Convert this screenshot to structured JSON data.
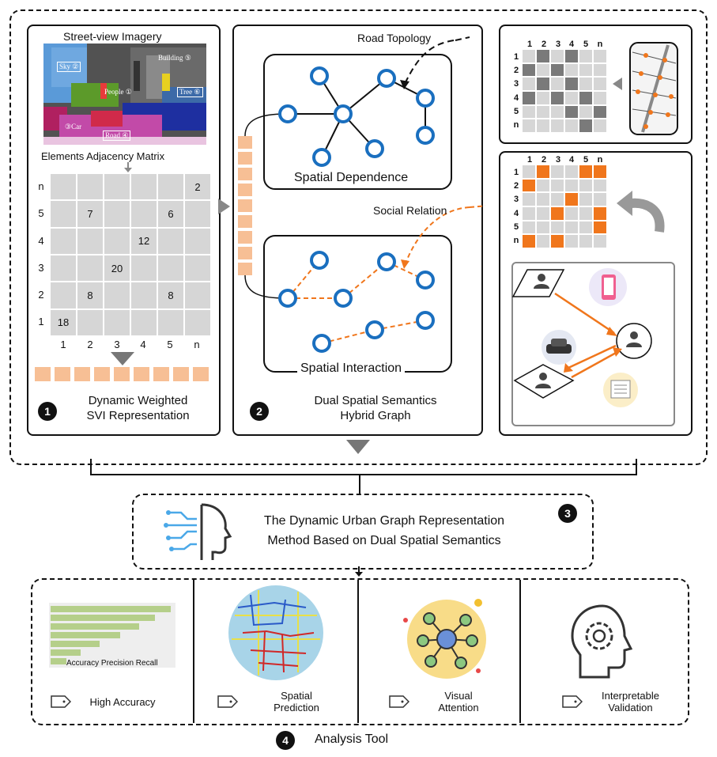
{
  "panel1": {
    "title": "Street-view Imagery",
    "segment_labels": [
      "Sky ②",
      "Building ⑤",
      "People ①",
      "Tree ⑥",
      "③Car",
      "Road ④"
    ],
    "matrix_title": "Elements Adjacency Matrix",
    "row_labels": [
      "n",
      "5",
      "4",
      "3",
      "2",
      "1"
    ],
    "col_labels": [
      "1",
      "2",
      "3",
      "4",
      "5",
      "n"
    ],
    "cell_values": [
      "2",
      "7",
      "6",
      "12",
      "20",
      "8",
      "8",
      "18"
    ],
    "step": "1",
    "caption_line1": "Dynamic Weighted",
    "caption_line2": "SVI Representation"
  },
  "panel2": {
    "road_topology": "Road Topology",
    "spatial_dependence": "Spatial Dependence",
    "social_relation": "Social Relation",
    "spatial_interaction": "Spatial Interaction",
    "step": "2",
    "caption_line1": "Dual Spatial Semantics",
    "caption_line2": "Hybrid Graph"
  },
  "panel3_matrices": {
    "col_labels": [
      "1",
      "2",
      "3",
      "4",
      "5",
      "n"
    ],
    "row_labels": [
      "1",
      "2",
      "3",
      "4",
      "5",
      "n"
    ]
  },
  "method": {
    "step": "3",
    "line1": "The Dynamic Urban Graph Representation",
    "line2": "Method Based on Dual Spatial Semantics"
  },
  "analysis": {
    "step": "4",
    "title": "Analysis Tool",
    "bar_legend": "Accuracy Precision Recall",
    "tools": [
      {
        "line1": "High Accuracy",
        "line2": ""
      },
      {
        "line1": "Spatial",
        "line2": "Prediction"
      },
      {
        "line1": "Visual",
        "line2": "Attention"
      },
      {
        "line1": "Interpretable",
        "line2": "Validation"
      }
    ]
  },
  "colors": {
    "accent_orange": "#f0761c",
    "node_blue": "#1a6fbf",
    "matrix_gray": "#d6d6d6",
    "bar_green": "#b5cf8a"
  }
}
